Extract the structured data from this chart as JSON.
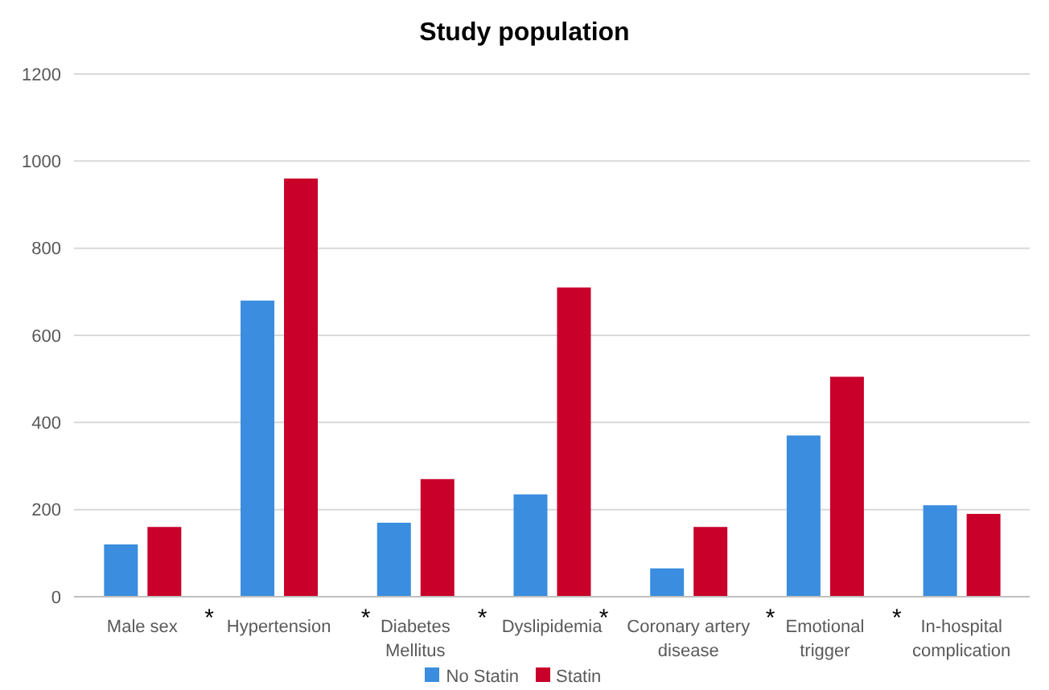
{
  "chart_data": {
    "type": "bar",
    "title": "Study population",
    "categories": [
      "Male sex",
      "Hypertension",
      "Diabetes Mellitus",
      "Dyslipidemia",
      "Coronary artery disease",
      "Emotional trigger",
      "In-hospital complication"
    ],
    "series": [
      {
        "name": "No Statin",
        "color": "#3a8ddf",
        "values": [
          120,
          680,
          170,
          235,
          65,
          370,
          210
        ]
      },
      {
        "name": "Statin",
        "color": "#c8002a",
        "values": [
          160,
          960,
          270,
          710,
          160,
          505,
          190
        ]
      }
    ],
    "ylim": [
      0,
      1200
    ],
    "yticks": [
      0,
      200,
      400,
      600,
      800,
      1000,
      1200
    ],
    "grid": "y",
    "legend": "bottom",
    "annotations": [
      "*",
      "*",
      "*",
      "*",
      "*",
      "*"
    ]
  }
}
